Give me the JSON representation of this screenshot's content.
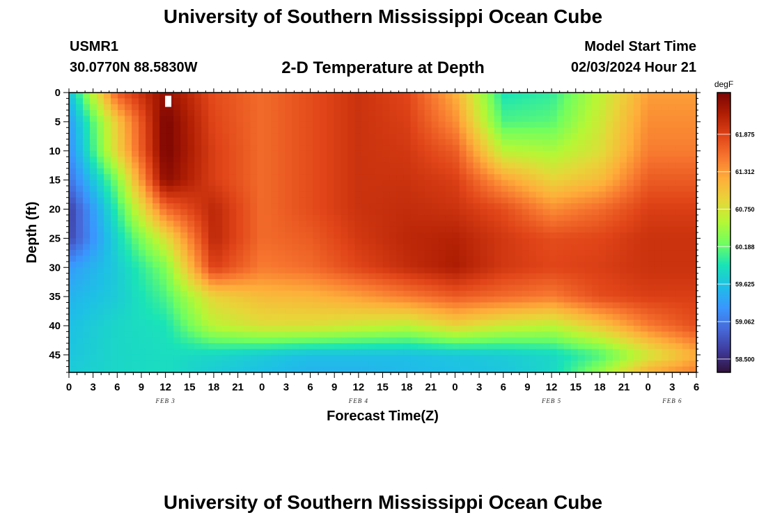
{
  "header": {
    "title": "University of Southern Mississippi Ocean Cube",
    "station": "USMR1",
    "coords": "30.0770N  88.5830W",
    "plot_title": "2-D Temperature at Depth",
    "start_label": "Model Start Time",
    "start_time": "02/03/2024 Hour 21",
    "footer_title": "University of Southern Mississippi Ocean Cube"
  },
  "colors": {
    "colormap": [
      "#30123b",
      "#3e3a9b",
      "#4669d9",
      "#3a96fe",
      "#1ebfe6",
      "#1ae4b6",
      "#71fe5f",
      "#b6f735",
      "#e8d539",
      "#feae3a",
      "#f7762f",
      "#e04418",
      "#b01e03",
      "#7a0403"
    ]
  },
  "chart_data": {
    "type": "heatmap",
    "xlabel": "Forecast Time(Z)",
    "ylabel": "Depth (ft)",
    "x_tick_labels": [
      "0",
      "3",
      "6",
      "9",
      "12",
      "15",
      "18",
      "21",
      "0",
      "3",
      "6",
      "9",
      "12",
      "15",
      "18",
      "21",
      "0",
      "3",
      "6",
      "9",
      "12",
      "15",
      "18",
      "21",
      "0",
      "3",
      "6"
    ],
    "date_labels": [
      {
        "label": "FEB 3",
        "hour": 12
      },
      {
        "label": "FEB 4",
        "hour": 36
      },
      {
        "label": "FEB 5",
        "hour": 60
      },
      {
        "label": "FEB 6",
        "hour": 75
      }
    ],
    "x_range_hours": [
      0,
      78
    ],
    "y_ticks": [
      0,
      5,
      10,
      15,
      20,
      25,
      30,
      35,
      40,
      45
    ],
    "ylim": [
      0,
      48
    ],
    "y_inverted": true,
    "colorbar": {
      "unit": "degF",
      "ticks": [
        "61.875",
        "61.312",
        "60.750",
        "60.188",
        "59.625",
        "59.062",
        "58.500"
      ],
      "range": [
        58.3,
        62.5
      ]
    },
    "marker": {
      "hour": 12.3,
      "depth": 1.5
    },
    "grid": {
      "hours": [
        0,
        6,
        12,
        18,
        24,
        30,
        36,
        42,
        48,
        54,
        60,
        66,
        72,
        78
      ],
      "depths": [
        0,
        5,
        10,
        15,
        20,
        25,
        30,
        35,
        40,
        45,
        48
      ],
      "values_degF": [
        [
          59.6,
          61.7,
          62.35,
          61.8,
          61.6,
          61.8,
          62.0,
          61.85,
          61.2,
          59.9,
          60.0,
          60.6,
          61.3,
          61.3
        ],
        [
          59.3,
          61.0,
          62.5,
          61.85,
          61.6,
          61.8,
          62.0,
          61.9,
          61.4,
          60.1,
          60.15,
          60.7,
          61.4,
          61.4
        ],
        [
          59.2,
          60.9,
          62.5,
          61.9,
          61.6,
          61.8,
          62.0,
          61.95,
          61.7,
          60.6,
          60.5,
          60.8,
          61.5,
          61.5
        ],
        [
          59.0,
          60.3,
          62.4,
          61.9,
          61.6,
          61.8,
          62.0,
          62.0,
          61.9,
          61.3,
          60.9,
          61.1,
          61.7,
          61.7
        ],
        [
          58.65,
          60.0,
          61.6,
          62.1,
          61.6,
          61.8,
          62.0,
          62.05,
          62.0,
          61.8,
          61.4,
          61.6,
          61.9,
          61.9
        ],
        [
          58.7,
          59.8,
          60.8,
          62.1,
          61.6,
          61.7,
          61.95,
          62.1,
          62.15,
          61.95,
          61.8,
          61.85,
          62.0,
          62.0
        ],
        [
          59.3,
          59.7,
          60.3,
          61.9,
          61.5,
          61.6,
          61.85,
          62.05,
          62.2,
          61.95,
          61.85,
          61.9,
          62.0,
          62.0
        ],
        [
          59.5,
          59.7,
          60.1,
          60.9,
          61.1,
          61.15,
          61.3,
          61.5,
          61.7,
          61.6,
          61.5,
          61.8,
          61.9,
          61.9
        ],
        [
          59.6,
          59.8,
          59.9,
          60.6,
          60.8,
          60.8,
          60.7,
          60.6,
          60.9,
          60.7,
          60.6,
          61.0,
          61.5,
          61.8
        ],
        [
          59.65,
          59.8,
          59.85,
          59.8,
          59.7,
          59.6,
          59.6,
          59.6,
          59.65,
          59.7,
          59.8,
          60.1,
          60.7,
          61.2
        ],
        [
          59.7,
          59.8,
          59.85,
          59.7,
          59.6,
          59.5,
          59.5,
          59.55,
          59.6,
          59.65,
          59.8,
          60.4,
          61.2,
          61.5
        ]
      ]
    }
  }
}
